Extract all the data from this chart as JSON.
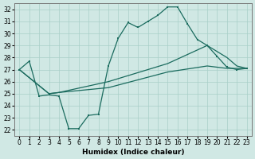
{
  "xlabel": "Humidex (Indice chaleur)",
  "xlim": [
    -0.5,
    23.5
  ],
  "ylim": [
    21.5,
    32.5
  ],
  "xticks": [
    0,
    1,
    2,
    3,
    4,
    5,
    6,
    7,
    8,
    9,
    10,
    11,
    12,
    13,
    14,
    15,
    16,
    17,
    18,
    19,
    20,
    21,
    22,
    23
  ],
  "yticks": [
    22,
    23,
    24,
    25,
    26,
    27,
    28,
    29,
    30,
    31,
    32
  ],
  "bg_color": "#d0e8e4",
  "line_color": "#1a6b5e",
  "grid_color": "#a8cfc8",
  "line1_x": [
    0,
    1,
    2,
    3,
    4,
    5,
    6,
    7,
    8,
    9,
    10,
    11,
    12,
    13,
    14,
    15,
    16,
    17,
    18,
    19,
    20,
    21,
    22,
    23
  ],
  "line1_y": [
    27.0,
    27.7,
    24.8,
    24.9,
    24.8,
    22.1,
    22.1,
    23.2,
    23.3,
    27.3,
    29.6,
    30.9,
    30.5,
    31.0,
    31.5,
    32.2,
    32.2,
    30.8,
    29.5,
    29.0,
    28.1,
    27.2,
    27.0,
    27.1
  ],
  "line2_x": [
    0,
    3,
    4,
    9,
    15,
    19,
    21,
    22,
    23
  ],
  "line2_y": [
    27.0,
    25.0,
    25.1,
    26.0,
    27.5,
    29.0,
    28.0,
    27.3,
    27.1
  ],
  "line3_x": [
    0,
    3,
    4,
    9,
    15,
    19,
    21,
    22,
    23
  ],
  "line3_y": [
    27.0,
    25.0,
    25.1,
    25.5,
    26.8,
    27.3,
    27.1,
    27.1,
    27.1
  ]
}
